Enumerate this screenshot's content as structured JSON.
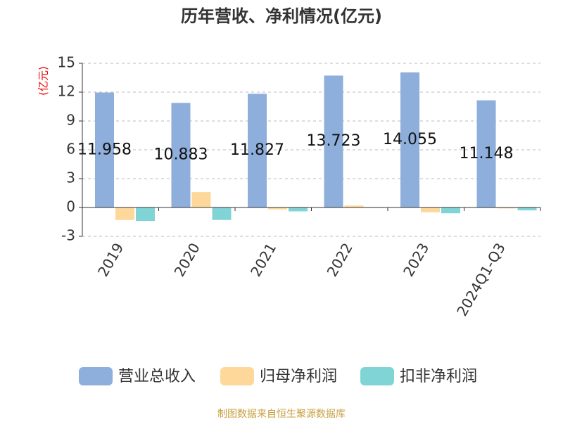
{
  "chart_data": {
    "type": "bar",
    "title": "历年营收、净利情况(亿元)",
    "y_label": "(亿元)",
    "source": "制图数据来自恒生聚源数据库",
    "categories": [
      "2019",
      "2020",
      "2021",
      "2022",
      "2023",
      "2024Q1-Q3"
    ],
    "series": [
      {
        "name": "营业总收入",
        "color": "#8eaedb",
        "values": [
          11.958,
          10.883,
          11.827,
          13.723,
          14.055,
          11.148
        ],
        "show_labels": true
      },
      {
        "name": "归母净利润",
        "color": "#fdd89a",
        "values": [
          -1.3,
          1.6,
          -0.2,
          0.2,
          -0.5,
          -0.1
        ]
      },
      {
        "name": "扣非净利润",
        "color": "#80d4d6",
        "values": [
          -1.4,
          -1.3,
          -0.4,
          -0.05,
          -0.6,
          -0.3
        ]
      }
    ],
    "ylim": [
      -3,
      15
    ],
    "yticks": [
      -3,
      0,
      3,
      6,
      9,
      12,
      15
    ],
    "grid": true
  }
}
